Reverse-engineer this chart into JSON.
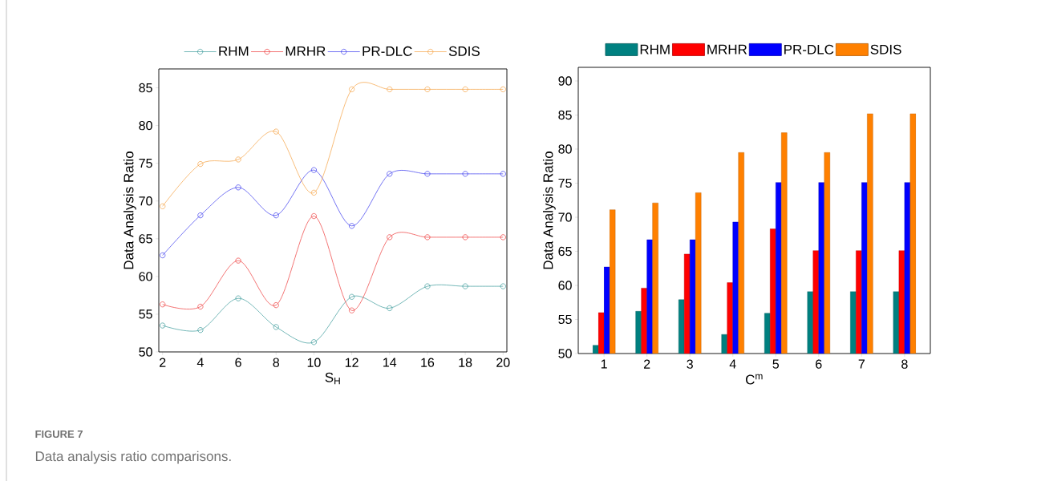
{
  "chart_data": [
    {
      "type": "line",
      "xlabel": "S$_{H}$",
      "ylabel": "Data Analysis Ratio",
      "x": [
        2,
        4,
        6,
        8,
        10,
        12,
        14,
        16,
        18,
        20
      ],
      "series": [
        {
          "name": "RHM",
          "color": "#3a9a9a",
          "values": [
            53.5,
            52.9,
            57.1,
            53.3,
            51.3,
            57.3,
            55.8,
            58.7,
            58.7,
            58.7
          ]
        },
        {
          "name": "MRHR",
          "color": "#ee3a3a",
          "values": [
            56.3,
            56.0,
            62.1,
            56.2,
            68.0,
            55.5,
            65.2,
            65.2,
            65.2,
            65.2
          ]
        },
        {
          "name": "PR-DLC",
          "color": "#3a3aee",
          "values": [
            62.8,
            68.1,
            71.8,
            68.1,
            74.1,
            66.7,
            73.6,
            73.6,
            73.6,
            73.6
          ]
        },
        {
          "name": "SDIS",
          "color": "#f5a040",
          "values": [
            69.3,
            74.9,
            75.5,
            79.2,
            71.1,
            84.8,
            84.8,
            84.8,
            84.8,
            84.8
          ]
        }
      ],
      "xlim": [
        1.8,
        20.2
      ],
      "ylim": [
        50,
        87.5
      ],
      "xticks": [
        2,
        4,
        6,
        8,
        10,
        12,
        14,
        16,
        18,
        20
      ],
      "yticks": [
        50,
        55,
        60,
        65,
        70,
        75,
        80,
        85
      ],
      "marker": "circle",
      "legend": "top",
      "annotations": [
        "FIGURE 7",
        "Data analysis ratio comparisons."
      ]
    },
    {
      "type": "bar",
      "xlabel": "C$^{m}$",
      "ylabel": "Data Analysis Ratio",
      "categories": [
        "1",
        "2",
        "3",
        "4",
        "5",
        "6",
        "7",
        "8"
      ],
      "series": [
        {
          "name": "RHM",
          "color": "#008080",
          "values": [
            51.2,
            56.2,
            57.9,
            52.8,
            55.9,
            59.1,
            59.1,
            59.1
          ]
        },
        {
          "name": "MRHR",
          "color": "#ff0000",
          "values": [
            56.0,
            59.6,
            64.6,
            60.4,
            68.3,
            65.1,
            65.1,
            65.1
          ]
        },
        {
          "name": "PR-DLC",
          "color": "#0000ff",
          "values": [
            62.7,
            66.7,
            66.7,
            69.3,
            75.1,
            75.1,
            75.1,
            75.1
          ]
        },
        {
          "name": "SDIS",
          "color": "#ff8000",
          "values": [
            71.1,
            72.1,
            73.6,
            79.5,
            82.4,
            79.5,
            85.2,
            85.2
          ]
        }
      ],
      "ylim": [
        50,
        92
      ],
      "yticks": [
        50,
        55,
        60,
        65,
        70,
        75,
        80,
        85,
        90
      ],
      "legend": "top"
    }
  ]
}
